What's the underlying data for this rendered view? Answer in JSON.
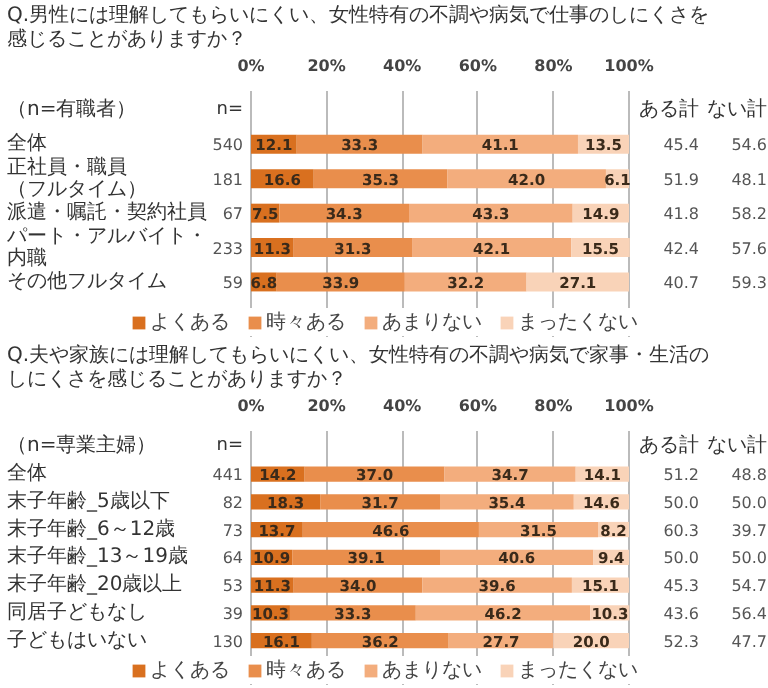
{
  "chart_data": [
    {
      "type": "bar",
      "orientation": "horizontal",
      "stacked": true,
      "title": "Q.男性には理解してもらいにくい、女性特有の不調や病気で仕事のしにくさを感じることがありますか？",
      "categories": [
        "全体",
        "正社員・職員（フルタイム）",
        "派遣・嘱託・契約社員",
        "パート・アルバイト・内職",
        "その他フルタイム"
      ],
      "series": [
        {
          "name": "よくある",
          "color": "#d9701f",
          "values": [
            12.1,
            16.6,
            7.5,
            11.3,
            6.8
          ],
          "value_labels": [
            "12.1",
            "16.6",
            "7.5",
            "11.3",
            "6.8"
          ]
        },
        {
          "name": "時々ある",
          "color": "#e98e4c",
          "values": [
            33.3,
            35.3,
            34.3,
            31.3,
            33.9
          ],
          "value_labels": [
            "33.3",
            "35.3",
            "34.3",
            "31.3",
            "33.9"
          ]
        },
        {
          "name": "あまりない",
          "color": "#f3ad7d",
          "values": [
            41.1,
            42.0,
            43.3,
            42.1,
            32.2
          ],
          "value_labels": [
            "41.1",
            "42.0",
            "43.3",
            "42.1",
            "32.2"
          ]
        },
        {
          "name": "まったくない",
          "color": "#f9d3b8",
          "values": [
            13.5,
            6.1,
            14.9,
            15.5,
            27.1
          ],
          "value_labels": [
            "13.5",
            "6.1",
            "14.9",
            "15.5",
            "27.1"
          ]
        }
      ],
      "xlim": [
        0,
        100
      ],
      "xticks": [
        {
          "value": 0,
          "label": "0%"
        },
        {
          "value": 20,
          "label": "20%"
        },
        {
          "value": 40,
          "label": "40%"
        },
        {
          "value": 60,
          "label": "60%"
        },
        {
          "value": 80,
          "label": "80%"
        },
        {
          "value": 100,
          "label": "100%"
        }
      ],
      "grid": "x",
      "legend": "bottom",
      "data_labels": true,
      "annotations": [
        "（n=有職者）",
        "n=",
        "ある計",
        "ない計",
        "540",
        "45.4",
        "54.6",
        "181",
        "51.9",
        "48.1",
        "67",
        "41.8",
        "58.2",
        "233",
        "42.4",
        "57.6",
        "59",
        "40.7",
        "59.3"
      ]
    },
    {
      "type": "bar",
      "orientation": "horizontal",
      "stacked": true,
      "title": "Q.夫や家族には理解してもらいにくい、女性特有の不調や病気で家事・生活のしにくさを感じることがありますか？",
      "categories": [
        "全体",
        "末子年齢_5歳以下",
        "末子年齢_6～12歳",
        "末子年齢_13～19歳",
        "末子年齢_20歳以上",
        "同居子どもなし",
        "子どもはいない"
      ],
      "series": [
        {
          "name": "よくある",
          "color": "#d9701f",
          "values": [
            14.2,
            18.3,
            13.7,
            10.9,
            11.3,
            10.3,
            16.1
          ],
          "value_labels": [
            "14.2",
            "18.3",
            "13.7",
            "10.9",
            "11.3",
            "10.3",
            "16.1"
          ]
        },
        {
          "name": "時々ある",
          "color": "#e98e4c",
          "values": [
            37.0,
            31.7,
            46.6,
            39.1,
            34.0,
            33.3,
            36.2
          ],
          "value_labels": [
            "37.0",
            "31.7",
            "46.6",
            "39.1",
            "34.0",
            "33.3",
            "36.2"
          ]
        },
        {
          "name": "あまりない",
          "color": "#f3ad7d",
          "values": [
            34.7,
            35.4,
            31.5,
            40.6,
            39.6,
            46.2,
            27.7
          ],
          "value_labels": [
            "34.7",
            "35.4",
            "31.5",
            "40.6",
            "39.6",
            "46.2",
            "27.7"
          ]
        },
        {
          "name": "まったくない",
          "color": "#f9d3b8",
          "values": [
            14.1,
            14.6,
            8.2,
            9.4,
            15.1,
            10.3,
            20.0
          ],
          "value_labels": [
            "14.1",
            "14.6",
            "8.2",
            "9.4",
            "15.1",
            "10.3",
            "20.0"
          ]
        }
      ],
      "xlim": [
        0,
        100
      ],
      "xticks": [
        {
          "value": 0,
          "label": "0%"
        },
        {
          "value": 20,
          "label": "20%"
        },
        {
          "value": 40,
          "label": "40%"
        },
        {
          "value": 60,
          "label": "60%"
        },
        {
          "value": 80,
          "label": "80%"
        },
        {
          "value": 100,
          "label": "100%"
        }
      ],
      "grid": "x",
      "legend": "bottom",
      "data_labels": true,
      "annotations": [
        "（n=専業主婦）",
        "n=",
        "ある計",
        "ない計",
        "441",
        "51.2",
        "48.8",
        "82",
        "50.0",
        "50.0",
        "73",
        "60.3",
        "39.7",
        "64",
        "50.0",
        "50.0",
        "53",
        "45.3",
        "54.7",
        "39",
        "43.6",
        "56.4",
        "130",
        "52.3",
        "47.7"
      ]
    }
  ]
}
